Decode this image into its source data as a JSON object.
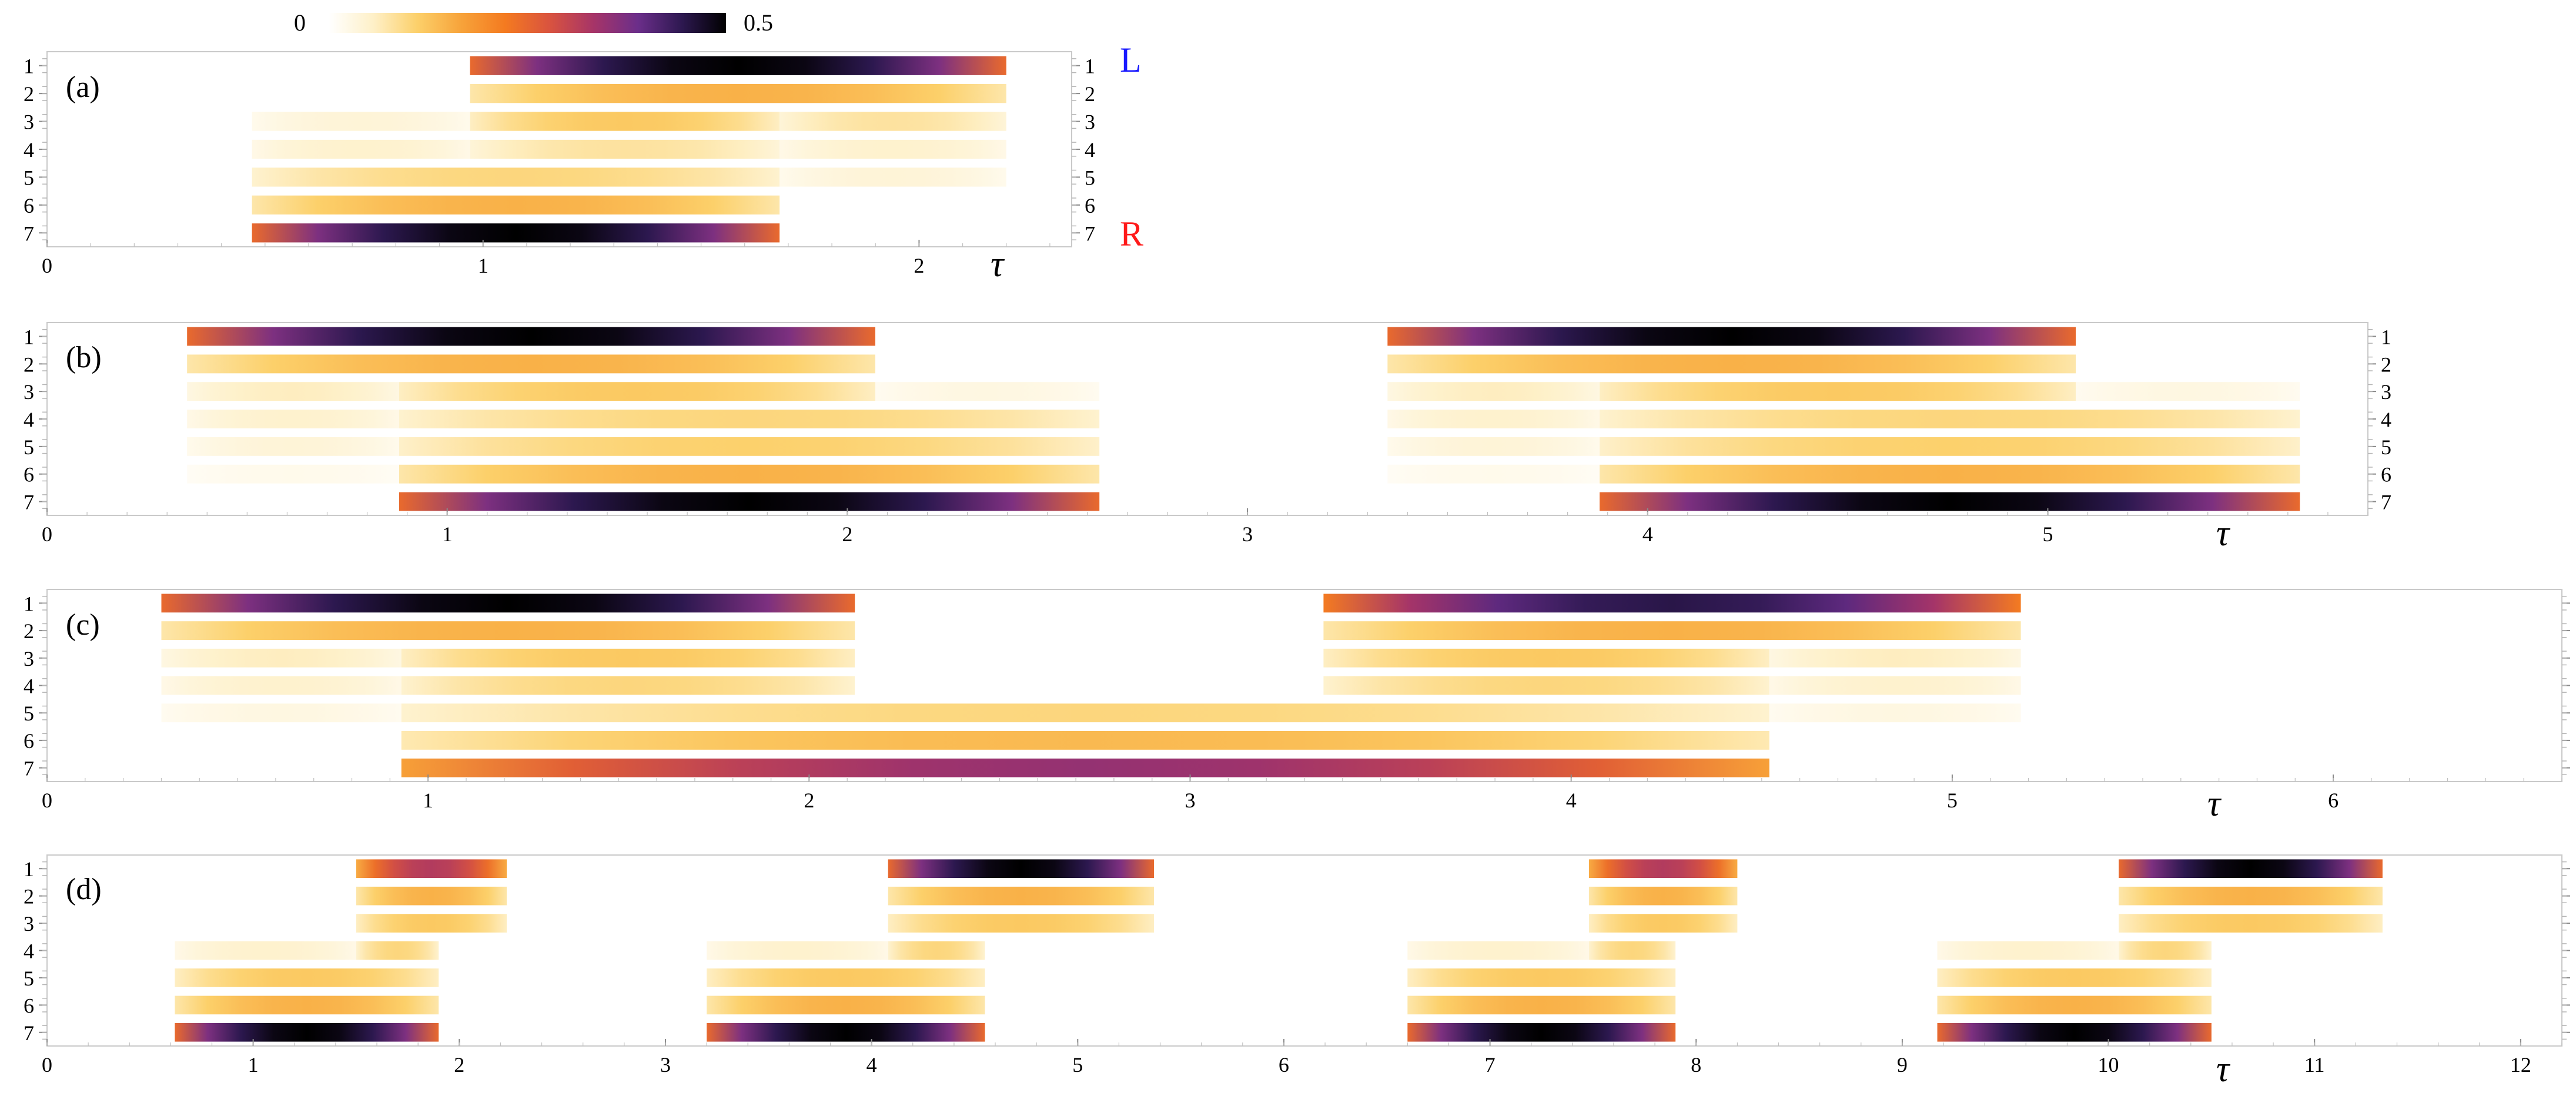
{
  "chart_data": {
    "type": "heatmap",
    "colorbar": {
      "min_label": "0",
      "max_label": "0.5",
      "min": 0,
      "max": 0.5,
      "stops": [
        "#ffffff",
        "#fef0c8",
        "#fcd06a",
        "#f7a33a",
        "#f47a20",
        "#d9533f",
        "#a63468",
        "#6b2e8a",
        "#2d1850",
        "#000000"
      ]
    },
    "site_labels": [
      "1",
      "2",
      "3",
      "4",
      "5",
      "6",
      "7"
    ],
    "left_label": "L",
    "right_label": "R",
    "xlabel": "τ",
    "panels": [
      {
        "label": "(a)",
        "xlim": [
          0,
          2.35
        ],
        "xticks": [
          "0",
          "1",
          "2"
        ],
        "rows": [
          {
            "segments": [
              {
                "start": 0.97,
                "end": 2.2,
                "peak": 0.5
              }
            ]
          },
          {
            "segments": [
              {
                "start": 0.97,
                "end": 2.2,
                "peak": 0.15
              }
            ]
          },
          {
            "segments": [
              {
                "start": 0.47,
                "end": 0.97,
                "peak": 0.04
              },
              {
                "start": 0.97,
                "end": 1.68,
                "peak": 0.12
              },
              {
                "start": 1.68,
                "end": 2.2,
                "peak": 0.08
              }
            ]
          },
          {
            "segments": [
              {
                "start": 0.47,
                "end": 0.97,
                "peak": 0.05
              },
              {
                "start": 0.97,
                "end": 1.68,
                "peak": 0.08
              },
              {
                "start": 1.68,
                "end": 2.2,
                "peak": 0.05
              }
            ]
          },
          {
            "segments": [
              {
                "start": 0.47,
                "end": 1.68,
                "peak": 0.1
              },
              {
                "start": 1.68,
                "end": 2.2,
                "peak": 0.04
              }
            ]
          },
          {
            "segments": [
              {
                "start": 0.47,
                "end": 1.68,
                "peak": 0.15
              }
            ]
          },
          {
            "segments": [
              {
                "start": 0.47,
                "end": 1.68,
                "peak": 0.5
              }
            ]
          }
        ]
      },
      {
        "label": "(b)",
        "xlim": [
          0,
          5.8
        ],
        "xticks": [
          "0",
          "1",
          "2",
          "3",
          "4",
          "5"
        ],
        "rows": [
          {
            "segments": [
              {
                "start": 0.35,
                "end": 2.07,
                "peak": 0.5
              },
              {
                "start": 3.35,
                "end": 5.07,
                "peak": 0.5
              }
            ]
          },
          {
            "segments": [
              {
                "start": 0.35,
                "end": 2.07,
                "peak": 0.15
              },
              {
                "start": 3.35,
                "end": 5.07,
                "peak": 0.15
              }
            ]
          },
          {
            "segments": [
              {
                "start": 0.35,
                "end": 0.88,
                "peak": 0.06
              },
              {
                "start": 0.88,
                "end": 2.07,
                "peak": 0.12
              },
              {
                "start": 2.07,
                "end": 2.63,
                "peak": 0.03
              },
              {
                "start": 3.35,
                "end": 3.88,
                "peak": 0.06
              },
              {
                "start": 3.88,
                "end": 5.07,
                "peak": 0.12
              },
              {
                "start": 5.07,
                "end": 5.63,
                "peak": 0.03
              }
            ]
          },
          {
            "segments": [
              {
                "start": 0.35,
                "end": 0.88,
                "peak": 0.05
              },
              {
                "start": 0.88,
                "end": 2.63,
                "peak": 0.1
              },
              {
                "start": 3.35,
                "end": 3.88,
                "peak": 0.05
              },
              {
                "start": 3.88,
                "end": 5.63,
                "peak": 0.1
              }
            ]
          },
          {
            "segments": [
              {
                "start": 0.35,
                "end": 0.88,
                "peak": 0.04
              },
              {
                "start": 0.88,
                "end": 2.63,
                "peak": 0.11
              },
              {
                "start": 3.35,
                "end": 3.88,
                "peak": 0.04
              },
              {
                "start": 3.88,
                "end": 5.63,
                "peak": 0.11
              }
            ]
          },
          {
            "segments": [
              {
                "start": 0.35,
                "end": 0.88,
                "peak": 0.02
              },
              {
                "start": 0.88,
                "end": 2.63,
                "peak": 0.15
              },
              {
                "start": 3.35,
                "end": 3.88,
                "peak": 0.02
              },
              {
                "start": 3.88,
                "end": 5.63,
                "peak": 0.15
              }
            ]
          },
          {
            "segments": [
              {
                "start": 0.88,
                "end": 2.63,
                "peak": 0.5
              },
              {
                "start": 3.88,
                "end": 5.63,
                "peak": 0.5
              }
            ]
          }
        ]
      },
      {
        "label": "(c)",
        "xlim": [
          0,
          6.6
        ],
        "xticks": [
          "0",
          "1",
          "2",
          "3",
          "4",
          "5",
          "6"
        ],
        "rows": [
          {
            "segments": [
              {
                "start": 0.3,
                "end": 2.12,
                "peak": 0.5
              },
              {
                "start": 3.35,
                "end": 5.18,
                "peak": 0.45
              }
            ]
          },
          {
            "segments": [
              {
                "start": 0.3,
                "end": 2.12,
                "peak": 0.15
              },
              {
                "start": 3.35,
                "end": 5.18,
                "peak": 0.15
              }
            ]
          },
          {
            "segments": [
              {
                "start": 0.3,
                "end": 0.93,
                "peak": 0.06
              },
              {
                "start": 0.93,
                "end": 2.12,
                "peak": 0.12
              },
              {
                "start": 3.35,
                "end": 4.52,
                "peak": 0.12
              },
              {
                "start": 4.52,
                "end": 5.18,
                "peak": 0.06
              }
            ]
          },
          {
            "segments": [
              {
                "start": 0.3,
                "end": 0.93,
                "peak": 0.05
              },
              {
                "start": 0.93,
                "end": 2.12,
                "peak": 0.1
              },
              {
                "start": 3.35,
                "end": 4.52,
                "peak": 0.1
              },
              {
                "start": 4.52,
                "end": 5.18,
                "peak": 0.05
              }
            ]
          },
          {
            "segments": [
              {
                "start": 0.3,
                "end": 0.93,
                "peak": 0.03
              },
              {
                "start": 0.93,
                "end": 4.52,
                "peak": 0.1
              },
              {
                "start": 4.52,
                "end": 5.18,
                "peak": 0.03
              }
            ]
          },
          {
            "segments": [
              {
                "start": 0.93,
                "end": 4.52,
                "peak": 0.14
              }
            ]
          },
          {
            "segments": [
              {
                "start": 0.93,
                "end": 4.52,
                "peak": 0.35
              }
            ]
          }
        ]
      },
      {
        "label": "(d)",
        "xlim": [
          0,
          12.2
        ],
        "xticks": [
          "0",
          "1",
          "2",
          "3",
          "4",
          "5",
          "6",
          "7",
          "8",
          "9",
          "10",
          "11",
          "12"
        ],
        "rows": [
          {
            "segments": [
              {
                "start": 1.5,
                "end": 2.23,
                "peak": 0.32
              },
              {
                "start": 4.08,
                "end": 5.37,
                "peak": 0.5
              },
              {
                "start": 7.48,
                "end": 8.2,
                "peak": 0.32
              },
              {
                "start": 10.05,
                "end": 11.33,
                "peak": 0.5
              }
            ]
          },
          {
            "segments": [
              {
                "start": 1.5,
                "end": 2.23,
                "peak": 0.15
              },
              {
                "start": 4.08,
                "end": 5.37,
                "peak": 0.15
              },
              {
                "start": 7.48,
                "end": 8.2,
                "peak": 0.15
              },
              {
                "start": 10.05,
                "end": 11.33,
                "peak": 0.15
              }
            ]
          },
          {
            "segments": [
              {
                "start": 1.5,
                "end": 2.23,
                "peak": 0.12
              },
              {
                "start": 4.08,
                "end": 5.37,
                "peak": 0.12
              },
              {
                "start": 7.48,
                "end": 8.2,
                "peak": 0.12
              },
              {
                "start": 10.05,
                "end": 11.33,
                "peak": 0.12
              }
            ]
          },
          {
            "segments": [
              {
                "start": 0.62,
                "end": 1.5,
                "peak": 0.05
              },
              {
                "start": 1.5,
                "end": 1.9,
                "peak": 0.1
              },
              {
                "start": 3.2,
                "end": 4.08,
                "peak": 0.05
              },
              {
                "start": 4.08,
                "end": 4.55,
                "peak": 0.1
              },
              {
                "start": 6.6,
                "end": 7.48,
                "peak": 0.05
              },
              {
                "start": 7.48,
                "end": 7.9,
                "peak": 0.1
              },
              {
                "start": 9.17,
                "end": 10.05,
                "peak": 0.05
              },
              {
                "start": 10.05,
                "end": 10.5,
                "peak": 0.1
              }
            ]
          },
          {
            "segments": [
              {
                "start": 0.62,
                "end": 1.9,
                "peak": 0.12
              },
              {
                "start": 3.2,
                "end": 4.55,
                "peak": 0.12
              },
              {
                "start": 6.6,
                "end": 7.9,
                "peak": 0.12
              },
              {
                "start": 9.17,
                "end": 10.5,
                "peak": 0.12
              }
            ]
          },
          {
            "segments": [
              {
                "start": 0.62,
                "end": 1.9,
                "peak": 0.15
              },
              {
                "start": 3.2,
                "end": 4.55,
                "peak": 0.15
              },
              {
                "start": 6.6,
                "end": 7.9,
                "peak": 0.15
              },
              {
                "start": 9.17,
                "end": 10.5,
                "peak": 0.15
              }
            ]
          },
          {
            "segments": [
              {
                "start": 0.62,
                "end": 1.9,
                "peak": 0.5
              },
              {
                "start": 3.2,
                "end": 4.55,
                "peak": 0.5
              },
              {
                "start": 6.6,
                "end": 7.9,
                "peak": 0.5
              },
              {
                "start": 9.17,
                "end": 10.5,
                "peak": 0.5
              }
            ]
          }
        ]
      }
    ]
  }
}
